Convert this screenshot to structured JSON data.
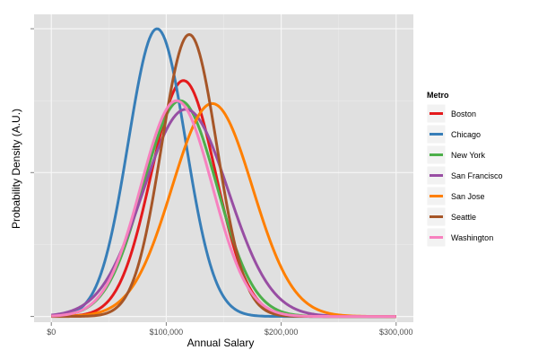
{
  "chart_data": {
    "type": "line",
    "xlabel": "Annual Salary",
    "ylabel": "Probability Density (A.U.)",
    "x_ticks": [
      0,
      100000,
      200000,
      300000
    ],
    "x_tick_labels": [
      "$0",
      "$100,000",
      "$200,000",
      "$300,000"
    ],
    "xlim": [
      -15000,
      315000
    ],
    "ylim": [
      -0.02,
      1.05
    ],
    "y_ticks": [
      0,
      0.5,
      1.0
    ],
    "legend": {
      "title": "Metro",
      "position": "right"
    },
    "background": "#e0e0e0",
    "grid": true,
    "series": [
      {
        "name": "Boston",
        "color": "#e41a1c",
        "peak_x": 115000,
        "peak_y": 0.82,
        "sd": 28000
      },
      {
        "name": "Chicago",
        "color": "#377eb8",
        "peak_x": 92000,
        "peak_y": 1.0,
        "sd": 25000
      },
      {
        "name": "New York",
        "color": "#4daf4a",
        "peak_x": 112000,
        "peak_y": 0.75,
        "sd": 32000
      },
      {
        "name": "San Francisco",
        "color": "#984ea3",
        "peak_x": 117000,
        "peak_y": 0.72,
        "sd": 37000
      },
      {
        "name": "San Jose",
        "color": "#ff7f00",
        "peak_x": 140000,
        "peak_y": 0.74,
        "sd": 35000
      },
      {
        "name": "Seattle",
        "color": "#a65628",
        "peak_x": 120000,
        "peak_y": 0.98,
        "sd": 24000
      },
      {
        "name": "Washington",
        "color": "#f781bf",
        "peak_x": 109000,
        "peak_y": 0.75,
        "sd": 31000
      }
    ]
  }
}
